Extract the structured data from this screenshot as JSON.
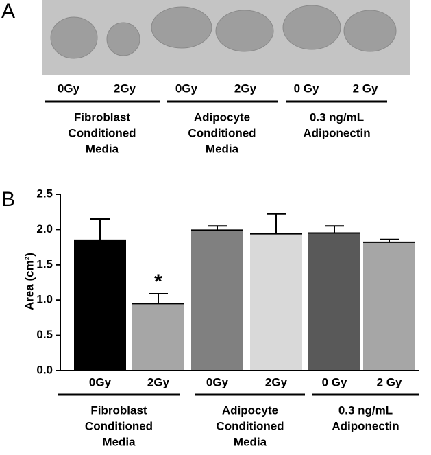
{
  "panel_a": {
    "label": "A",
    "dose_labels": [
      "0Gy",
      "2Gy",
      "0Gy",
      "2Gy",
      "0 Gy",
      "2 Gy"
    ],
    "groups": [
      [
        "Fibroblast",
        "Conditioned",
        "Media"
      ],
      [
        "Adipocyte",
        "Conditioned",
        "Media"
      ],
      [
        "0.3 ng/mL",
        "Adiponectin"
      ]
    ]
  },
  "chart_data": {
    "type": "bar",
    "panel_label": "B",
    "y_label": "Area (cm²)",
    "categories": [
      "0Gy",
      "2Gy",
      "0Gy",
      "2Gy",
      "0 Gy",
      "2 Gy"
    ],
    "groups": [
      [
        "Fibroblast",
        "Conditioned",
        "Media"
      ],
      [
        "Adipocyte",
        "Conditioned",
        "Media"
      ],
      [
        "0.3 ng/mL",
        "Adiponectin"
      ]
    ],
    "values": [
      1.85,
      0.95,
      1.99,
      1.94,
      1.95,
      1.82
    ],
    "errors": [
      0.3,
      0.14,
      0.06,
      0.28,
      0.1,
      0.04
    ],
    "colors": [
      "#000000",
      "#a6a6a6",
      "#808080",
      "#d9d9d9",
      "#595959",
      "#a6a6a6"
    ],
    "value_annotations": [
      null,
      "*",
      null,
      null,
      null,
      null
    ],
    "ylim": [
      0,
      2.5
    ],
    "yticks": [
      {
        "value": 0,
        "label": "0.0"
      },
      0.5,
      {
        "value": 1,
        "label": "1.0"
      },
      1.5,
      {
        "value": 2,
        "label": "2.0"
      },
      2.5
    ]
  }
}
